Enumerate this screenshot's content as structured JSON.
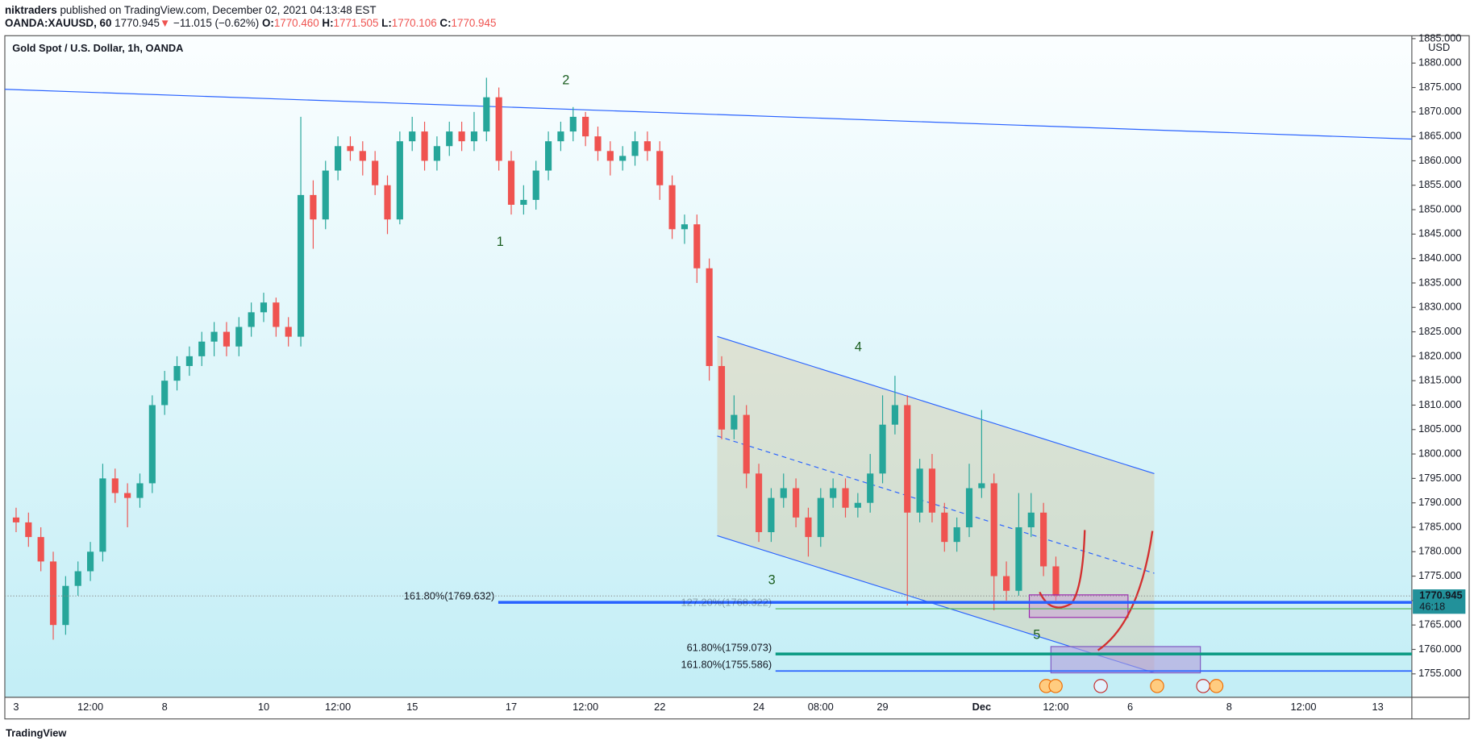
{
  "header": {
    "publisher": "niktraders",
    "published": "published on TradingView.com, December 02, 2021 04:13:48 EST",
    "symbol": "OANDA:XAUUSD, 60",
    "price": "1770.945",
    "arrow": "▼",
    "change": "−11.015 (−0.62%)",
    "o_label": "O:",
    "o": "1770.460",
    "h_label": "H:",
    "h": "1771.505",
    "l_label": "L:",
    "l": "1770.106",
    "c_label": "C:",
    "c": "1770.945"
  },
  "footer": {
    "brand": "TradingView"
  },
  "chart_data": {
    "type": "candlestick",
    "title": "Gold Spot / U.S. Dollar, 1h, OANDA",
    "currency": "USD",
    "up_color": "#26a69a",
    "down_color": "#ef5350",
    "categories": [
      "3",
      null,
      null,
      null,
      null,
      null,
      "12:00",
      null,
      null,
      null,
      null,
      null,
      "8",
      null,
      null,
      null,
      null,
      null,
      null,
      null,
      "10",
      null,
      null,
      null,
      null,
      null,
      "12:00",
      null,
      null,
      null,
      null,
      null,
      "15",
      null,
      null,
      null,
      null,
      null,
      null,
      null,
      "17",
      null,
      null,
      null,
      null,
      null,
      "12:00",
      null,
      null,
      null,
      null,
      null,
      "22",
      null,
      null,
      null,
      null,
      null,
      null,
      null,
      "24",
      null,
      null,
      null,
      null,
      "08:00",
      null,
      null,
      null,
      null,
      "29",
      null,
      null,
      null,
      null,
      null,
      null,
      null,
      "Dec",
      null,
      null,
      null,
      null,
      null,
      "12:00",
      null,
      null,
      null,
      null,
      null,
      "6",
      null,
      null,
      null,
      null,
      null,
      null,
      null,
      "8",
      null,
      null,
      null,
      null,
      null,
      "12:00",
      null,
      null,
      null,
      null,
      null,
      "13",
      null,
      null
    ],
    "open": [
      1787,
      1786,
      1783,
      1778,
      1765,
      1773,
      1776,
      1780,
      1795,
      1792,
      1791,
      1794,
      1810,
      1815,
      1818,
      1820,
      1823,
      1825,
      1822,
      1826,
      1829,
      1831,
      1826,
      1824,
      1853,
      1848,
      1858,
      1863,
      1862,
      1860,
      1855,
      1848,
      1864,
      1866,
      1860,
      1863,
      1866,
      1864,
      1866,
      1873,
      1860,
      1851,
      1852,
      1858,
      1864,
      1866,
      1869,
      1865,
      1862,
      1860,
      1861,
      1864,
      1862,
      1855,
      1846,
      1847,
      1838,
      1818,
      1805,
      1808,
      1796,
      1784,
      1791,
      1793,
      1787,
      1783,
      1791,
      1793,
      1789,
      1790,
      1796,
      1806,
      1810,
      1788,
      1797,
      1788,
      1782,
      1785,
      1793,
      1794,
      1775,
      1772,
      1785,
      1788,
      1777,
      null,
      null,
      null,
      null,
      null,
      null,
      null,
      null,
      null,
      null,
      null,
      null,
      null,
      null,
      null,
      null,
      null,
      null,
      null,
      null,
      null,
      null,
      null,
      null,
      null,
      null,
      null,
      null
    ],
    "high": [
      1789,
      1788,
      1785,
      1780,
      1775,
      1778,
      1782,
      1798,
      1797,
      1794,
      1796,
      1812,
      1817,
      1820,
      1822,
      1825,
      1827,
      1827,
      1828,
      1831,
      1833,
      1832,
      1828,
      1869,
      1856,
      1860,
      1865,
      1865,
      1864,
      1862,
      1857,
      1866,
      1869,
      1868,
      1865,
      1868,
      1868,
      1870,
      1877,
      1875,
      1862,
      1855,
      1860,
      1866,
      1868,
      1871,
      1870,
      1867,
      1864,
      1863,
      1866,
      1866,
      1864,
      1857,
      1849,
      1849,
      1840,
      1820,
      1812,
      1810,
      1798,
      1793,
      1796,
      1795,
      1789,
      1793,
      1795,
      1795,
      1792,
      1800,
      1812,
      1816,
      1812,
      1799,
      1800,
      1790,
      1787,
      1798,
      1809,
      1796,
      1778,
      1792,
      1792,
      1790,
      1779,
      null,
      null,
      null,
      null,
      null,
      null,
      null,
      null,
      null,
      null,
      null,
      null,
      null,
      null,
      null,
      null,
      null,
      null,
      null,
      null,
      null,
      null,
      null,
      null,
      null,
      null,
      null,
      null
    ],
    "low": [
      1784,
      1781,
      1776,
      1762,
      1763,
      1771,
      1774,
      1778,
      1790,
      1785,
      1789,
      1792,
      1808,
      1813,
      1816,
      1818,
      1820,
      1820,
      1820,
      1824,
      1827,
      1824,
      1822,
      1822,
      1842,
      1846,
      1856,
      1860,
      1857,
      1853,
      1845,
      1847,
      1862,
      1858,
      1858,
      1861,
      1862,
      1862,
      1864,
      1858,
      1849,
      1849,
      1850,
      1856,
      1862,
      1864,
      1863,
      1860,
      1857,
      1858,
      1859,
      1860,
      1852,
      1844,
      1843,
      1835,
      1815,
      1803,
      1803,
      1793,
      1782,
      1782,
      1789,
      1785,
      1779,
      1781,
      1789,
      1787,
      1787,
      1788,
      1794,
      1804,
      1769,
      1786,
      1786,
      1780,
      1780,
      1783,
      1791,
      1768,
      1770,
      1771,
      1783,
      1775,
      1770,
      null,
      null,
      null,
      null,
      null,
      null,
      null,
      null,
      null,
      null,
      null,
      null,
      null,
      null,
      null,
      null,
      null,
      null,
      null,
      null,
      null,
      null,
      null,
      null,
      null,
      null,
      null,
      null
    ],
    "close": [
      1786,
      1783,
      1778,
      1765,
      1773,
      1776,
      1780,
      1795,
      1792,
      1791,
      1794,
      1810,
      1815,
      1818,
      1820,
      1823,
      1825,
      1822,
      1826,
      1829,
      1831,
      1826,
      1824,
      1853,
      1848,
      1858,
      1863,
      1862,
      1860,
      1855,
      1848,
      1864,
      1866,
      1860,
      1863,
      1866,
      1864,
      1866,
      1873,
      1860,
      1851,
      1852,
      1858,
      1864,
      1866,
      1869,
      1865,
      1862,
      1860,
      1861,
      1864,
      1862,
      1855,
      1846,
      1847,
      1838,
      1818,
      1805,
      1808,
      1796,
      1784,
      1791,
      1793,
      1787,
      1783,
      1791,
      1793,
      1789,
      1790,
      1796,
      1806,
      1810,
      1788,
      1797,
      1788,
      1782,
      1785,
      1793,
      1794,
      1775,
      1772,
      1785,
      1788,
      1777,
      1770.945,
      null,
      null,
      null,
      null,
      null,
      null,
      null,
      null,
      null,
      null,
      null,
      null,
      null,
      null,
      null,
      null,
      null,
      null,
      null,
      null,
      null,
      null,
      null,
      null,
      null,
      null,
      null,
      null
    ],
    "ylim": [
      1750.2,
      1885.6
    ],
    "yticks": [
      {
        "value": 1755,
        "label": "1755.000"
      },
      {
        "value": 1760,
        "label": "1760.000"
      },
      {
        "value": 1765,
        "label": "1765.000"
      },
      {
        "value": 1770,
        "label": "1770.000"
      },
      {
        "value": 1775,
        "label": "1775.000"
      },
      {
        "value": 1780,
        "label": "1780.000"
      },
      {
        "value": 1785,
        "label": "1785.000"
      },
      {
        "value": 1790,
        "label": "1790.000"
      },
      {
        "value": 1795,
        "label": "1795.000"
      },
      {
        "value": 1800,
        "label": "1800.000"
      },
      {
        "value": 1805,
        "label": "1805.000"
      },
      {
        "value": 1810,
        "label": "1810.000"
      },
      {
        "value": 1815,
        "label": "1815.000"
      },
      {
        "value": 1820,
        "label": "1820.000"
      },
      {
        "value": 1825,
        "label": "1825.000"
      },
      {
        "value": 1830,
        "label": "1830.000"
      },
      {
        "value": 1835,
        "label": "1835.000"
      },
      {
        "value": 1840,
        "label": "1840.000"
      },
      {
        "value": 1845,
        "label": "1845.000"
      },
      {
        "value": 1850,
        "label": "1850.000"
      },
      {
        "value": 1855,
        "label": "1855.000"
      },
      {
        "value": 1860,
        "label": "1860.000"
      },
      {
        "value": 1865,
        "label": "1865.000"
      },
      {
        "value": 1870,
        "label": "1870.000"
      },
      {
        "value": 1875,
        "label": "1875.000"
      },
      {
        "value": 1880,
        "label": "1880.000"
      },
      {
        "value": 1885,
        "label": "1885.000"
      }
    ],
    "levels": [
      {
        "label": "161.80%(1769.632)",
        "value": 1769.632,
        "color": "#2962ff"
      },
      {
        "label": "127.20%(1768.322)",
        "value": 1768.322,
        "color": "#4caf50"
      },
      {
        "label": "61.80%(1759.073)",
        "value": 1759.073,
        "color": "#089981"
      },
      {
        "label": "161.80%(1755.586)",
        "value": 1755.586,
        "color": "#2962ff"
      }
    ],
    "last_price": {
      "value": 1770.945,
      "countdown": "46:18",
      "color": "#22919a"
    },
    "waves": [
      "1",
      "2",
      "3",
      "4",
      "5"
    ]
  }
}
